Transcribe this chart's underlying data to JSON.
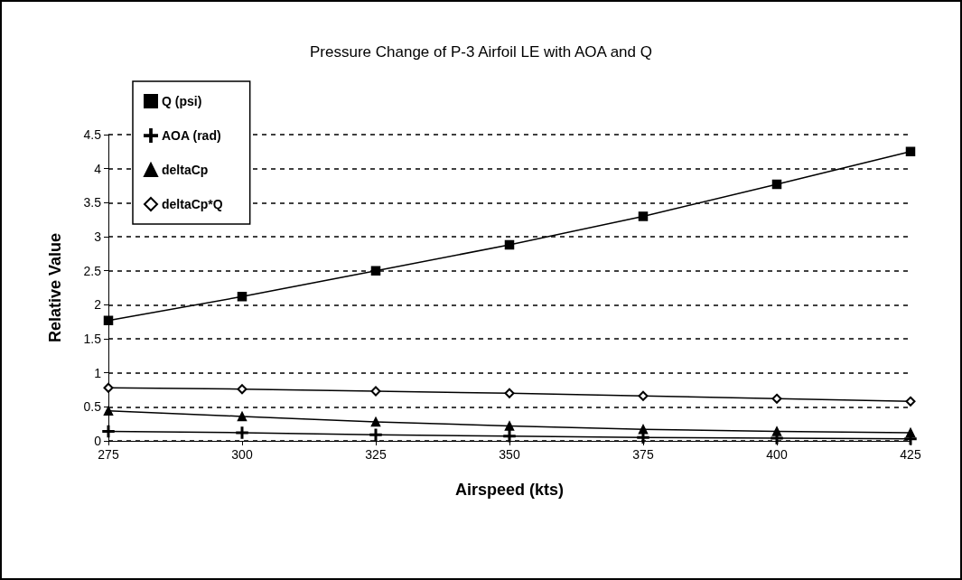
{
  "chart_data": {
    "type": "line",
    "title": "Pressure Change of P-3 Airfoil LE with AOA and Q",
    "xlabel": "Airspeed (kts)",
    "ylabel": "Relative Value",
    "x": [
      275,
      300,
      325,
      350,
      375,
      400,
      425
    ],
    "series": [
      {
        "name": "Q (psi)",
        "color": "#000000",
        "marker": "square",
        "values": [
          1.77,
          2.12,
          2.5,
          2.88,
          3.3,
          3.77,
          4.25
        ]
      },
      {
        "name": "AOA (rad)",
        "color": "#000000",
        "marker": "cross",
        "values": [
          0.14,
          0.12,
          0.09,
          0.07,
          0.05,
          0.04,
          0.03
        ]
      },
      {
        "name": "deltaCp",
        "color": "#000000",
        "marker": "triangle",
        "values": [
          0.44,
          0.36,
          0.28,
          0.22,
          0.17,
          0.14,
          0.12
        ]
      },
      {
        "name": "deltaCp*Q",
        "color": "#000000",
        "marker": "diamond",
        "values": [
          0.78,
          0.76,
          0.73,
          0.7,
          0.66,
          0.62,
          0.58
        ]
      }
    ],
    "xlim": [
      275,
      425
    ],
    "xticks": [
      275,
      300,
      325,
      350,
      375,
      400,
      425
    ],
    "ylim": [
      0,
      4.5
    ],
    "yticks": [
      0,
      0.5,
      1,
      1.5,
      2,
      2.5,
      3,
      3.5,
      4,
      4.5
    ],
    "grid": "y",
    "legend": "top left",
    "line_style": "solid"
  }
}
